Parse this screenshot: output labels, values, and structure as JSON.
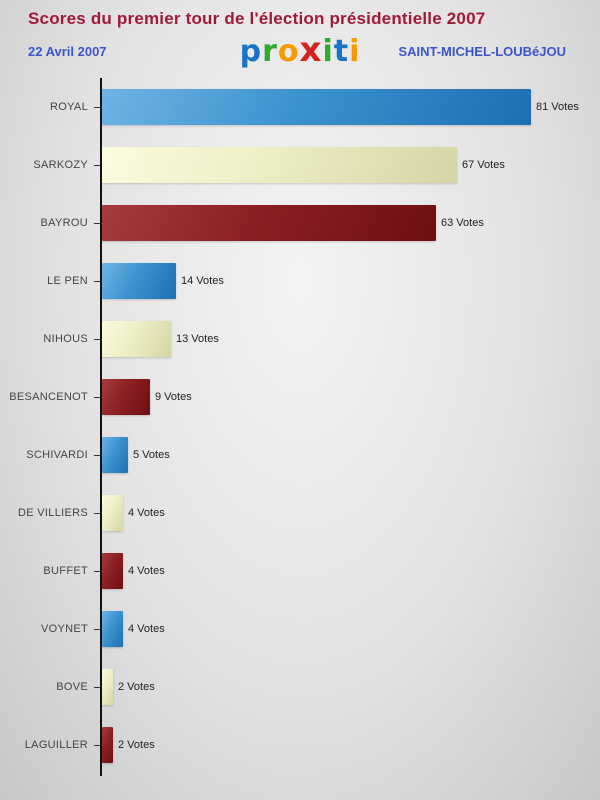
{
  "header": {
    "title": "Scores du premier tour de l'élection présidentielle 2007",
    "date": "22 Avril 2007",
    "location": "SAINT-MICHEL-LOUBéJOU",
    "logo": {
      "text": "proxiti",
      "letters": [
        {
          "ch": "p",
          "color": "#1a73c4",
          "big": false
        },
        {
          "ch": "r",
          "color": "#2faa2f",
          "big": false
        },
        {
          "ch": "o",
          "color": "#f59a00",
          "big": false
        },
        {
          "ch": "x",
          "color": "#d42020",
          "big": true
        },
        {
          "ch": "i",
          "color": "#2faa2f",
          "big": false
        },
        {
          "ch": "t",
          "color": "#1a73c4",
          "big": false
        },
        {
          "ch": "i",
          "color": "#f59a00",
          "big": false
        }
      ]
    }
  },
  "colors": {
    "title_text": "#a01a38",
    "subtitle_text": "#3c55c8",
    "bar_blue": "#2a7fc0",
    "bar_cream": "#ececc2",
    "bar_darkred": "#8c1f24",
    "axis": "#111111"
  },
  "chart_data": {
    "type": "bar",
    "orientation": "horizontal",
    "title": "Scores du premier tour de l'élection présidentielle 2007",
    "subtitle_left": "22 Avril 2007",
    "subtitle_right": "SAINT-MICHEL-LOUBéJOU",
    "categories": [
      "ROYAL",
      "SARKOZY",
      "BAYROU",
      "LE PEN",
      "NIHOUS",
      "BESANCENOT",
      "SCHIVARDI",
      "DE VILLIERS",
      "BUFFET",
      "VOYNET",
      "BOVE",
      "LAGUILLER"
    ],
    "values": [
      81,
      67,
      63,
      14,
      13,
      9,
      5,
      4,
      4,
      4,
      2,
      2
    ],
    "value_suffix": "Votes",
    "value_labels": [
      "81 Votes",
      "67 Votes",
      "63 Votes",
      "14 Votes",
      "13 Votes",
      "9 Votes",
      "5 Votes",
      "4 Votes",
      "4 Votes",
      "4 Votes",
      "2 Votes",
      "2 Votes"
    ],
    "xlim": [
      0,
      81
    ],
    "bar_color_cycle": [
      "blue",
      "cream",
      "darkred"
    ],
    "grid": false,
    "legend": false
  }
}
